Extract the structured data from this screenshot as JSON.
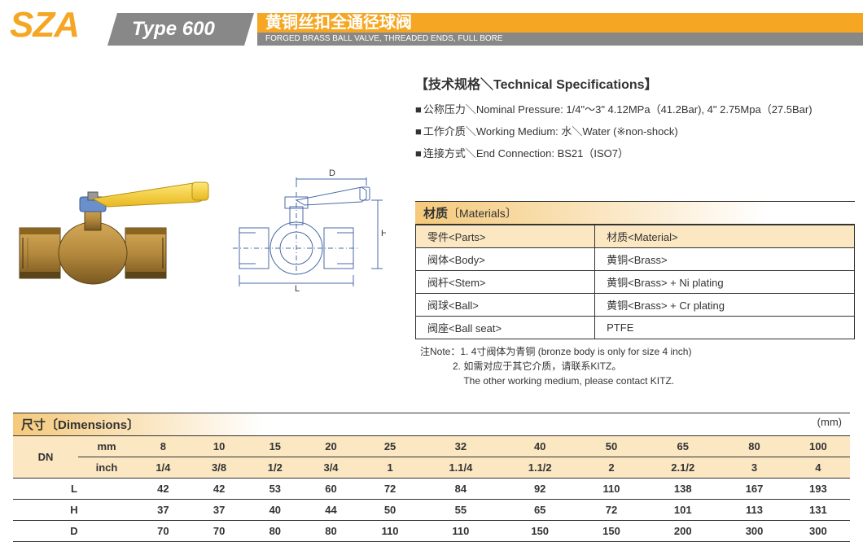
{
  "header": {
    "model": "SZA",
    "type": "Type 600",
    "title_cn": "黄铜丝扣全通径球阀",
    "title_en": "FORGED BRASS BALL VALVE, THREADED ENDS, FULL BORE"
  },
  "specs": {
    "title": "【技术规格＼Technical Specifications】",
    "lines": [
      "公称压力＼Nominal Pressure: 1/4\"～3\" 4.12MPa（41.2Bar), 4\" 2.75Mpa（27.5Bar)",
      "工作介质＼Working Medium: 水＼Water (※non-shock)",
      "连接方式＼End Connection: BS21（ISO7）"
    ]
  },
  "materials": {
    "header_cn": "材质",
    "header_en": "〔Materials〕",
    "head": [
      "零件<Parts>",
      "材质<Material>"
    ],
    "rows": [
      [
        "阀体<Body>",
        "黄铜<Brass>"
      ],
      [
        "阀杆<Stem>",
        "黄铜<Brass> + Ni plating"
      ],
      [
        "阀球<Ball>",
        "黄铜<Brass> + Cr plating"
      ],
      [
        "阀座<Ball seat>",
        "PTFE"
      ]
    ],
    "note_label": "注Note：",
    "notes": [
      "1. 4寸阀体为青铜 (bronze body is only for size 4 inch)",
      "2. 如需对应于其它介质，请联系KITZ。",
      "The other working medium, please contact KITZ."
    ]
  },
  "dimensions": {
    "header_cn": "尺寸",
    "header_en": "〔Dimensions〕",
    "unit": "(mm)",
    "dn_label": "DN",
    "mm_label": "mm",
    "inch_label": "inch",
    "mm_row": [
      "8",
      "10",
      "15",
      "20",
      "25",
      "32",
      "40",
      "50",
      "65",
      "80",
      "100"
    ],
    "inch_row": [
      "1/4",
      "3/8",
      "1/2",
      "3/4",
      "1",
      "1.1/4",
      "1.1/2",
      "2",
      "2.1/2",
      "3",
      "4"
    ],
    "params": [
      {
        "label": "L",
        "vals": [
          "42",
          "42",
          "53",
          "60",
          "72",
          "84",
          "92",
          "110",
          "138",
          "167",
          "193"
        ]
      },
      {
        "label": "H",
        "vals": [
          "37",
          "37",
          "40",
          "44",
          "50",
          "55",
          "65",
          "72",
          "101",
          "113",
          "131"
        ]
      },
      {
        "label": "D",
        "vals": [
          "70",
          "70",
          "80",
          "80",
          "110",
          "110",
          "150",
          "150",
          "200",
          "300",
          "300"
        ]
      }
    ]
  },
  "diagram_labels": {
    "D": "D",
    "H": "H",
    "L": "L"
  },
  "colors": {
    "accent": "#f5a623",
    "header_gray": "#888888",
    "tan_bg": "#fbe7c2",
    "valve_brass": "#b58a3e",
    "valve_brass_dark": "#8a6420",
    "handle_yellow": "#f4d23c",
    "handle_blue": "#6b8fc9",
    "diagram_line": "#4a6aa5"
  }
}
